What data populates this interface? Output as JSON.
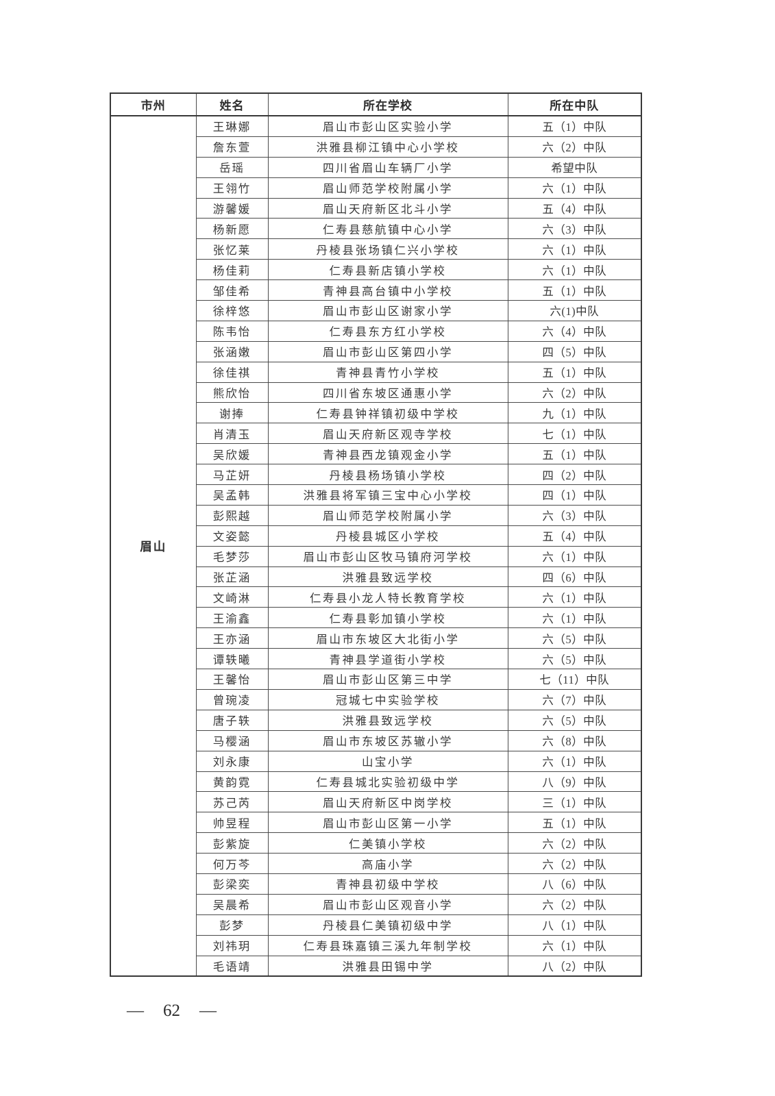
{
  "page": {
    "footer_dash_left": "—",
    "footer_page_number": "62",
    "footer_dash_right": "—"
  },
  "table": {
    "headers": [
      "市州",
      "姓名",
      "所在学校",
      "所在中队"
    ],
    "region": "眉山",
    "rows": [
      {
        "name": "王琳娜",
        "school": "眉山市彭山区实验小学",
        "squad": "五（1）中队"
      },
      {
        "name": "詹东萱",
        "school": "洪雅县柳江镇中心小学校",
        "squad": "六（2）中队"
      },
      {
        "name": "岳瑶",
        "school": "四川省眉山车辆厂小学",
        "squad": "希望中队"
      },
      {
        "name": "王翎竹",
        "school": "眉山师范学校附属小学",
        "squad": "六（1）中队"
      },
      {
        "name": "游馨媛",
        "school": "眉山天府新区北斗小学",
        "squad": "五（4）中队"
      },
      {
        "name": "杨新愿",
        "school": "仁寿县慈航镇中心小学",
        "squad": "六（3）中队"
      },
      {
        "name": "张忆莱",
        "school": "丹棱县张场镇仁兴小学校",
        "squad": "六（1）中队"
      },
      {
        "name": "杨佳莉",
        "school": "仁寿县新店镇小学校",
        "squad": "六（1）中队"
      },
      {
        "name": "邹佳希",
        "school": "青神县高台镇中小学校",
        "squad": "五（1）中队"
      },
      {
        "name": "徐梓悠",
        "school": "眉山市彭山区谢家小学",
        "squad": "六(1)中队"
      },
      {
        "name": "陈韦怡",
        "school": "仁寿县东方红小学校",
        "squad": "六（4）中队"
      },
      {
        "name": "张涵嫩",
        "school": "眉山市彭山区第四小学",
        "squad": "四（5）中队"
      },
      {
        "name": "徐佳祺",
        "school": "青神县青竹小学校",
        "squad": "五（1）中队"
      },
      {
        "name": "熊欣怡",
        "school": "四川省东坡区通惠小学",
        "squad": "六（2）中队"
      },
      {
        "name": "谢捧",
        "school": "仁寿县钟祥镇初级中学校",
        "squad": "九（1）中队"
      },
      {
        "name": "肖清玉",
        "school": "眉山天府新区观寺学校",
        "squad": "七（1）中队"
      },
      {
        "name": "吴欣媛",
        "school": "青神县西龙镇观金小学",
        "squad": "五（1）中队"
      },
      {
        "name": "马芷妍",
        "school": "丹棱县杨场镇小学校",
        "squad": "四（2）中队"
      },
      {
        "name": "吴孟韩",
        "school": "洪雅县将军镇三宝中心小学校",
        "squad": "四（1）中队"
      },
      {
        "name": "彭熙越",
        "school": "眉山师范学校附属小学",
        "squad": "六（3）中队"
      },
      {
        "name": "文姿懿",
        "school": "丹棱县城区小学校",
        "squad": "五（4）中队"
      },
      {
        "name": "毛梦莎",
        "school": "眉山市彭山区牧马镇府河学校",
        "squad": "六（1）中队"
      },
      {
        "name": "张芷涵",
        "school": "洪雅县致远学校",
        "squad": "四（6）中队"
      },
      {
        "name": "文崎淋",
        "school": "仁寿县小龙人特长教育学校",
        "squad": "六（1）中队"
      },
      {
        "name": "王渝鑫",
        "school": "仁寿县彰加镇小学校",
        "squad": "六（1）中队"
      },
      {
        "name": "王亦涵",
        "school": "眉山市东坡区大北街小学",
        "squad": "六（5）中队"
      },
      {
        "name": "谭轶曦",
        "school": "青神县学道街小学校",
        "squad": "六（5）中队"
      },
      {
        "name": "王馨怡",
        "school": "眉山市彭山区第三中学",
        "squad": "七（11）中队"
      },
      {
        "name": "曾琬凌",
        "school": "冠城七中实验学校",
        "squad": "六（7）中队"
      },
      {
        "name": "唐子轶",
        "school": "洪雅县致远学校",
        "squad": "六（5）中队"
      },
      {
        "name": "马樱涵",
        "school": "眉山市东坡区苏辙小学",
        "squad": "六（8）中队"
      },
      {
        "name": "刘永康",
        "school": "山宝小学",
        "squad": "六（1）中队"
      },
      {
        "name": "黄韵霓",
        "school": "仁寿县城北实验初级中学",
        "squad": "八（9）中队"
      },
      {
        "name": "苏己芮",
        "school": "眉山天府新区中岗学校",
        "squad": "三（1）中队"
      },
      {
        "name": "帅昱程",
        "school": "眉山市彭山区第一小学",
        "squad": "五（1）中队"
      },
      {
        "name": "彭紫旋",
        "school": "仁美镇小学校",
        "squad": "六（2）中队"
      },
      {
        "name": "何万芩",
        "school": "高庙小学",
        "squad": "六（2）中队"
      },
      {
        "name": "彭梁奕",
        "school": "青神县初级中学校",
        "squad": "八（6）中队"
      },
      {
        "name": "吴晨希",
        "school": "眉山市彭山区观音小学",
        "squad": "六（2）中队"
      },
      {
        "name": "彭梦",
        "school": "丹棱县仁美镇初级中学",
        "squad": "八（1）中队"
      },
      {
        "name": "刘祎玥",
        "school": "仁寿县珠嘉镇三溪九年制学校",
        "squad": "六（1）中队"
      },
      {
        "name": "毛语靖",
        "school": "洪雅县田锡中学",
        "squad": "八（2）中队"
      }
    ]
  }
}
